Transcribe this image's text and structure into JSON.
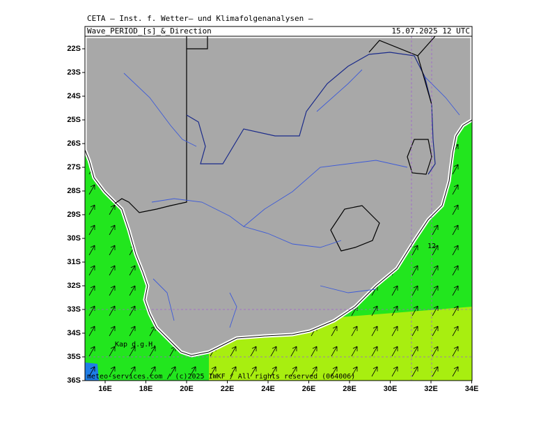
{
  "header": {
    "institute": "CETA – Inst. f. Wetter– und Klimafolgenanalysen –",
    "product": "Wave_PERIOD_[s]_&_Direction",
    "valid_time": "15.07.2025 12 UTC"
  },
  "map": {
    "lat_labels": [
      "22S",
      "23S",
      "24S",
      "25S",
      "26S",
      "27S",
      "28S",
      "29S",
      "30S",
      "31S",
      "32S",
      "33S",
      "34S",
      "35S",
      "36S"
    ],
    "lon_labels": [
      "16E",
      "18E",
      "20E",
      "22E",
      "24E",
      "26E",
      "28E",
      "30E",
      "32E",
      "34E"
    ],
    "place_label": "Kap d.g.H.",
    "contour_label": "12"
  },
  "footer": "meteo-services.com / (c)2025 IWKF / All rights reserved (064006)"
}
